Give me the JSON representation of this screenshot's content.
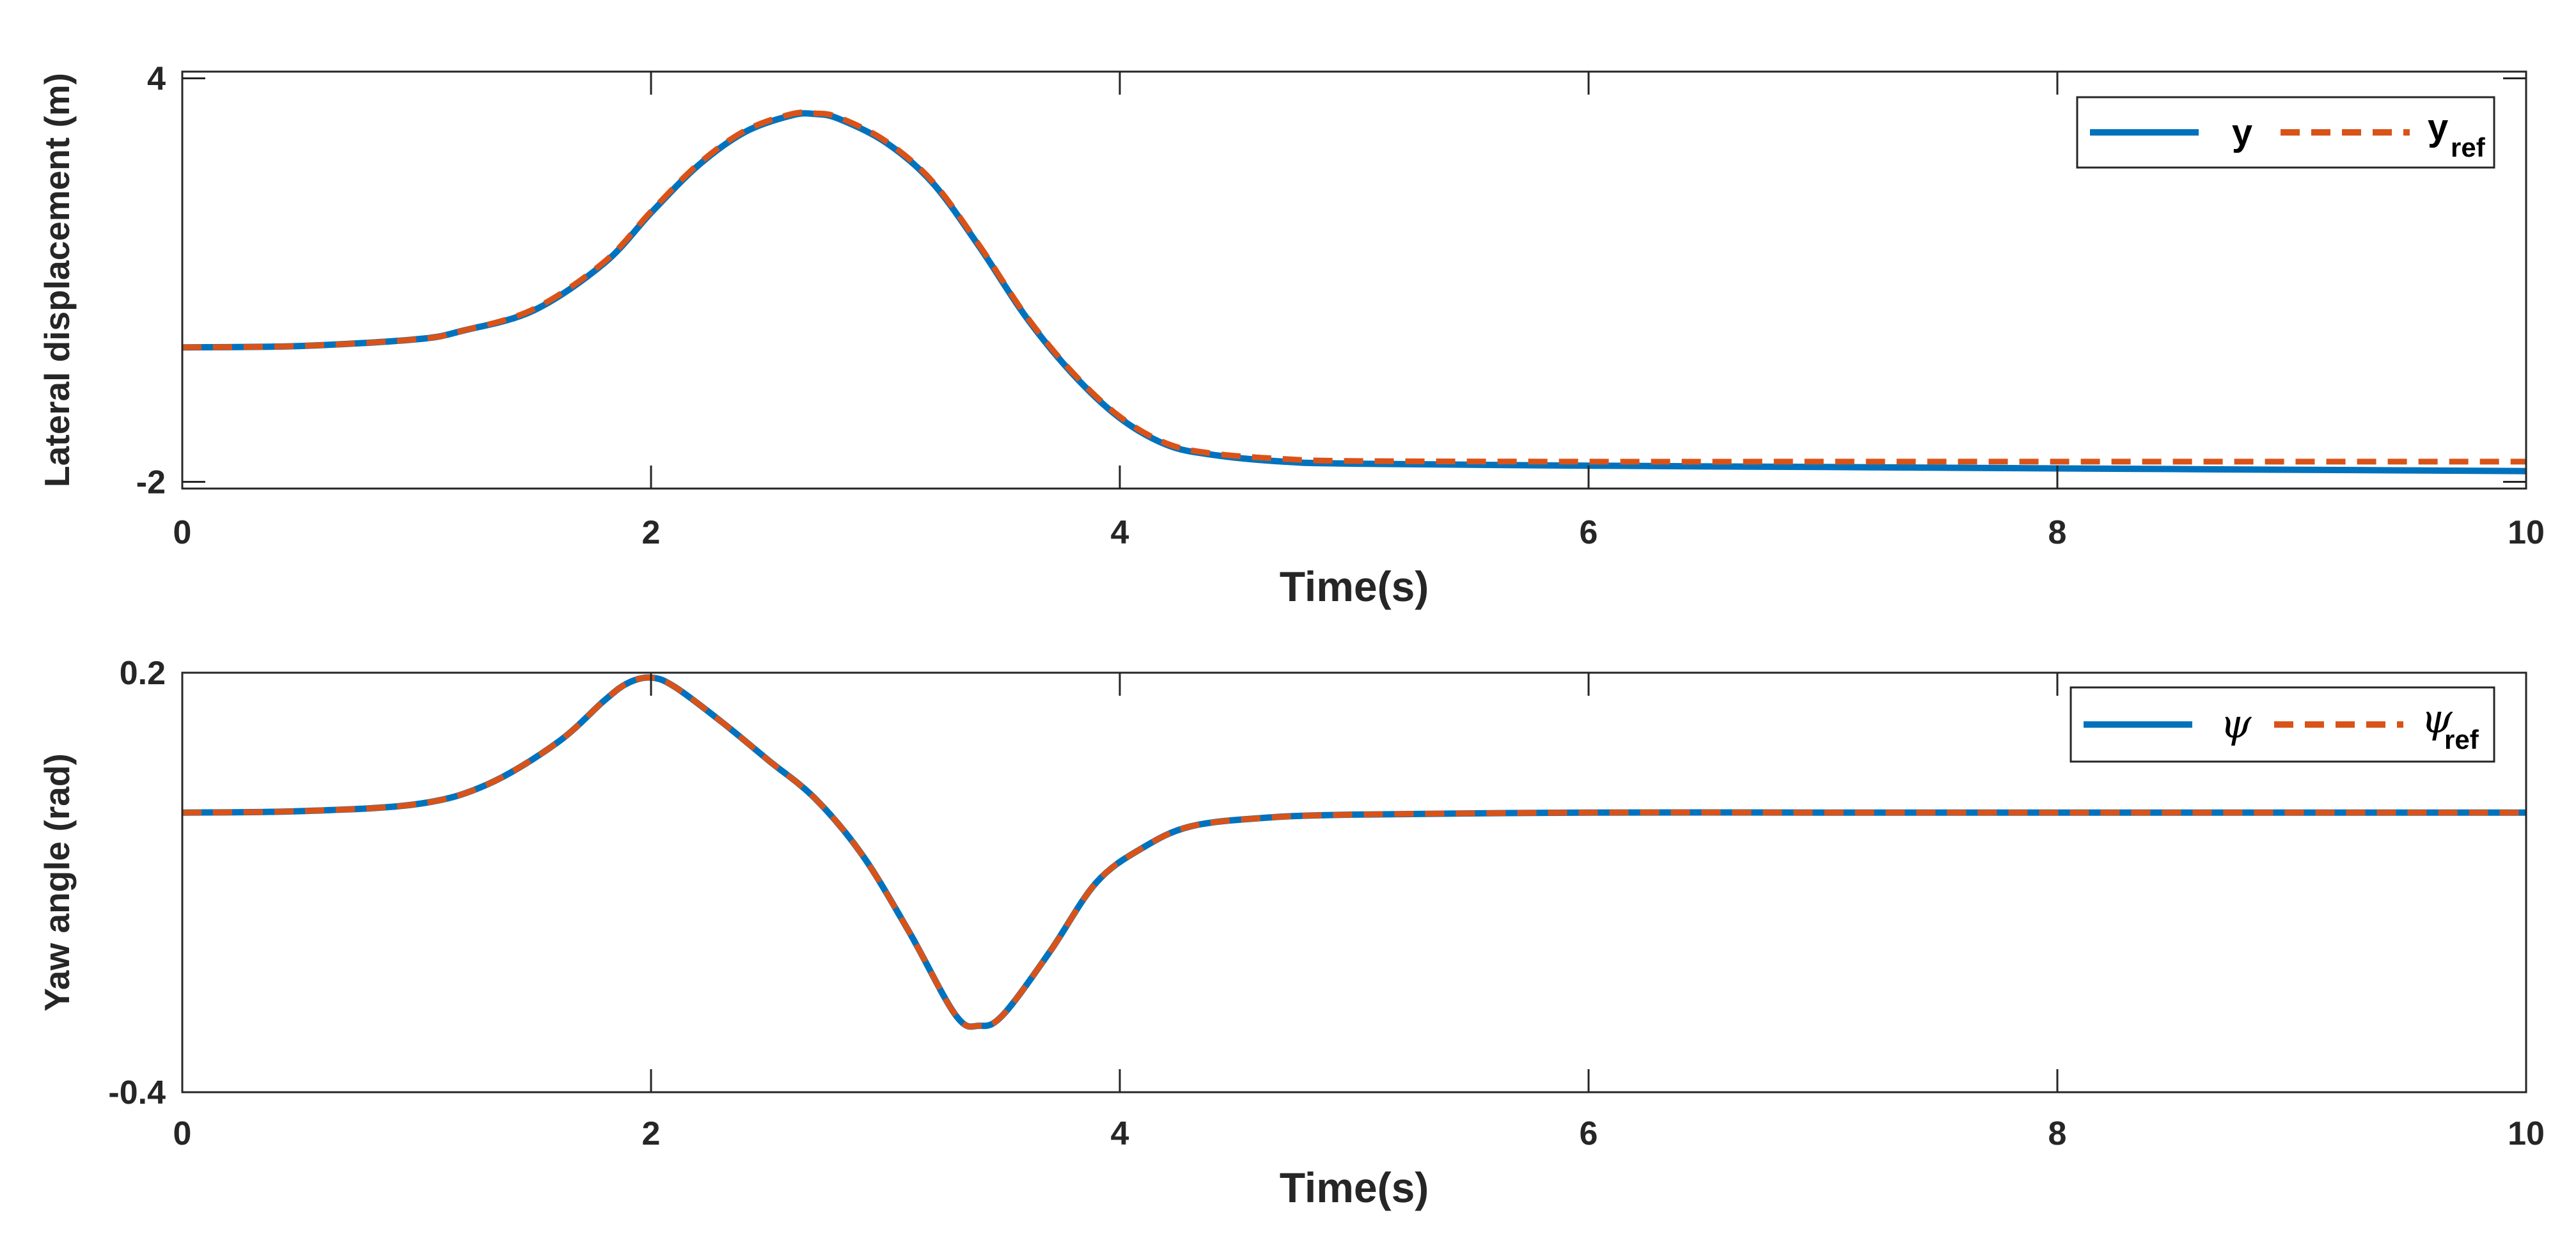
{
  "chart_data": [
    {
      "type": "line",
      "ylabel": "Lateral displacement (m)",
      "xlabel": "Time(s)",
      "xlim": [
        0,
        10
      ],
      "ylim": [
        -2.1,
        4.1
      ],
      "xticks": [
        "0",
        "2",
        "4",
        "6",
        "8",
        "10"
      ],
      "yticks": [
        "-2",
        "4"
      ],
      "ytick_values": [
        -2,
        4
      ],
      "legend_position": "top-right",
      "series": [
        {
          "name": "y",
          "color": "#0072BD",
          "style": "solid",
          "x": [
            0,
            0.5,
            1.0,
            1.2,
            1.5,
            1.8,
            2.0,
            2.2,
            2.4,
            2.6,
            2.7,
            2.8,
            3.0,
            3.2,
            3.4,
            3.6,
            3.8,
            4.0,
            4.2,
            4.4,
            4.7,
            5.0,
            6.0,
            7.0,
            8.0,
            9.0,
            10.0
          ],
          "y": [
            0.0,
            0.02,
            0.12,
            0.25,
            0.55,
            1.25,
            2.0,
            2.7,
            3.2,
            3.45,
            3.47,
            3.4,
            3.05,
            2.45,
            1.5,
            0.45,
            -0.4,
            -1.05,
            -1.45,
            -1.6,
            -1.7,
            -1.73,
            -1.76,
            -1.78,
            -1.8,
            -1.82,
            -1.84
          ]
        },
        {
          "name": "y_ref",
          "color": "#D95319",
          "style": "dashed",
          "x": [
            0,
            0.5,
            1.0,
            1.2,
            1.5,
            1.8,
            2.0,
            2.2,
            2.4,
            2.6,
            2.7,
            2.8,
            3.0,
            3.2,
            3.4,
            3.6,
            3.8,
            4.0,
            4.2,
            4.4,
            4.7,
            5.0,
            6.0,
            7.0,
            8.0,
            9.0,
            10.0
          ],
          "y": [
            0.0,
            0.02,
            0.12,
            0.25,
            0.57,
            1.27,
            2.02,
            2.72,
            3.22,
            3.47,
            3.48,
            3.42,
            3.07,
            2.47,
            1.52,
            0.47,
            -0.38,
            -1.03,
            -1.43,
            -1.58,
            -1.66,
            -1.69,
            -1.7,
            -1.7,
            -1.7,
            -1.7,
            -1.7
          ]
        }
      ],
      "legend": {
        "entries": [
          {
            "base": "y",
            "sub": ""
          },
          {
            "base": "y",
            "sub": "ref"
          }
        ]
      }
    },
    {
      "type": "line",
      "ylabel": "Yaw angle (rad)",
      "xlabel": "Time(s)",
      "xlim": [
        0,
        10
      ],
      "ylim": [
        -0.4,
        0.2
      ],
      "xticks": [
        "0",
        "2",
        "4",
        "6",
        "8",
        "10"
      ],
      "yticks": [
        "-0.4",
        "0.2"
      ],
      "ytick_values": [
        -0.4,
        0.2
      ],
      "legend_position": "top-right",
      "series": [
        {
          "name": "ψ",
          "color": "#0072BD",
          "style": "solid",
          "x": [
            0,
            0.5,
            1.0,
            1.3,
            1.6,
            1.8,
            1.9,
            2.0,
            2.1,
            2.3,
            2.5,
            2.7,
            2.9,
            3.1,
            3.3,
            3.4,
            3.5,
            3.7,
            3.9,
            4.1,
            4.3,
            4.6,
            5.0,
            6.0,
            7.0,
            8.0,
            10.0
          ],
          "y": [
            0.0,
            0.002,
            0.012,
            0.04,
            0.1,
            0.16,
            0.185,
            0.193,
            0.18,
            0.13,
            0.075,
            0.02,
            -0.06,
            -0.17,
            -0.29,
            -0.305,
            -0.29,
            -0.2,
            -0.1,
            -0.05,
            -0.02,
            -0.008,
            -0.003,
            0.0,
            0.0,
            0.0,
            0.0
          ]
        },
        {
          "name": "ψ_ref",
          "color": "#D95319",
          "style": "dashed",
          "x": [
            0,
            0.5,
            1.0,
            1.3,
            1.6,
            1.8,
            1.9,
            2.0,
            2.1,
            2.3,
            2.5,
            2.7,
            2.9,
            3.1,
            3.3,
            3.4,
            3.5,
            3.7,
            3.9,
            4.1,
            4.3,
            4.6,
            5.0,
            6.0,
            7.0,
            8.0,
            10.0
          ],
          "y": [
            0.0,
            0.002,
            0.012,
            0.04,
            0.1,
            0.16,
            0.185,
            0.193,
            0.18,
            0.13,
            0.075,
            0.02,
            -0.06,
            -0.17,
            -0.29,
            -0.305,
            -0.29,
            -0.2,
            -0.1,
            -0.05,
            -0.02,
            -0.008,
            -0.003,
            0.0,
            0.0,
            0.0,
            0.0
          ]
        }
      ],
      "legend": {
        "entries": [
          {
            "base": "ψ",
            "sub": ""
          },
          {
            "base": "ψ",
            "sub": "ref"
          }
        ]
      }
    }
  ]
}
